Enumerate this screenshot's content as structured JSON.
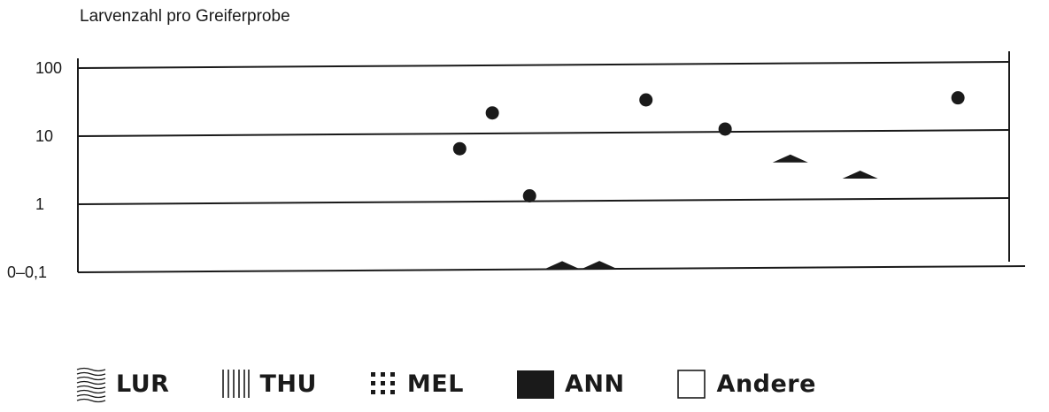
{
  "chart_data": {
    "type": "scatter",
    "ylabel": "Larvenzahl pro Greiferprobe",
    "y_scale": "log",
    "y_ticks": [
      "0–0,1",
      "1",
      "10",
      "100"
    ],
    "ylim": [
      0.1,
      100
    ],
    "xlim": [
      0,
      1
    ],
    "grid": true,
    "series": [
      {
        "marker": "circle",
        "points": [
          {
            "x": 0.41,
            "y": 6
          },
          {
            "x": 0.445,
            "y": 20
          },
          {
            "x": 0.485,
            "y": 1.2
          },
          {
            "x": 0.61,
            "y": 30
          },
          {
            "x": 0.695,
            "y": 11
          },
          {
            "x": 0.945,
            "y": 30
          }
        ]
      },
      {
        "marker": "triangle",
        "points": [
          {
            "x": 0.52,
            "y": 0.1
          },
          {
            "x": 0.56,
            "y": 0.1
          },
          {
            "x": 0.765,
            "y": 3.5
          },
          {
            "x": 0.84,
            "y": 2.0
          }
        ]
      }
    ],
    "legend": [
      {
        "key": "LUR",
        "pattern": "wavy-lines"
      },
      {
        "key": "THU",
        "pattern": "vertical-lines"
      },
      {
        "key": "MEL",
        "pattern": "dots"
      },
      {
        "key": "ANN",
        "pattern": "solid-fill"
      },
      {
        "key": "Andere",
        "pattern": "empty"
      }
    ]
  }
}
